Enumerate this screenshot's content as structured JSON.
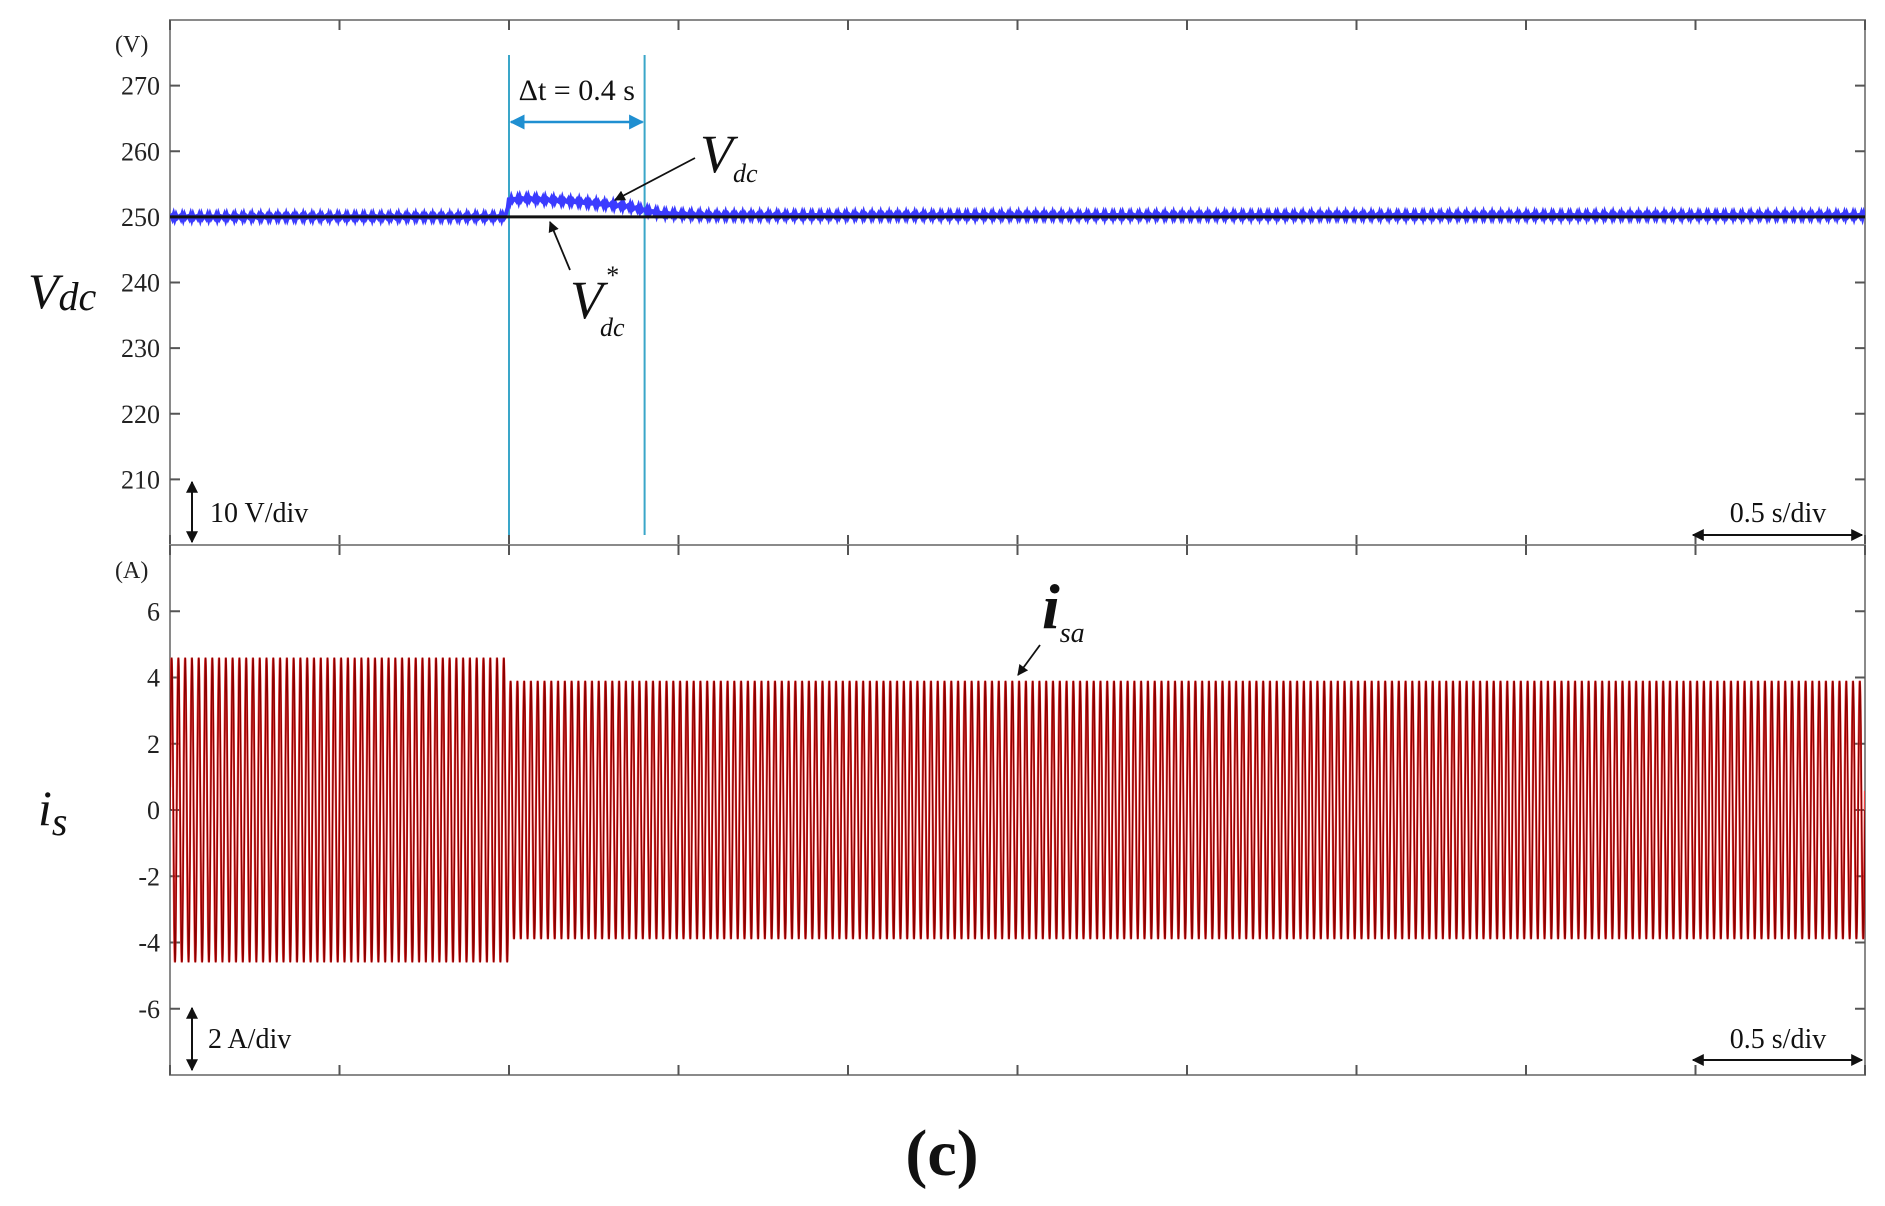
{
  "caption": "(c)",
  "colors": {
    "axes": "#8a8a8a",
    "grid_tick": "#555555",
    "vdc_measured": "#3b3bff",
    "vdc_reference": "#111111",
    "current_envelope": "#ff3b3b",
    "current_inner": "#8b0000",
    "cursor_lines": "#3aa6c9",
    "delta_arrow": "#1f8fd1"
  },
  "chart_data": [
    {
      "type": "line",
      "unit_label": "(V)",
      "ylabel_main": "V",
      "ylabel_sub": "dc",
      "x_range": [
        0,
        5
      ],
      "y_range": [
        200,
        280
      ],
      "y_ticks": [
        210,
        220,
        230,
        240,
        250,
        260,
        270
      ],
      "y_tick_labels": [
        "210",
        "220",
        "230",
        "240",
        "250",
        "260",
        "270"
      ],
      "vertical_scale_label": "10 V/div",
      "time_scale_label": "0.5 s/div",
      "cursors": [
        1.0,
        1.4
      ],
      "delta_label": "Δt = 0.4 s",
      "annotations": [
        {
          "main": "V",
          "sub": "dc",
          "sup": ""
        },
        {
          "main": "V",
          "sub": "dc",
          "sup": "*"
        }
      ],
      "series": [
        {
          "role": "measured",
          "x": [
            0,
            0.99,
            1.0,
            1.05,
            1.2,
            1.35,
            1.45,
            1.6,
            5.0
          ],
          "y": [
            250,
            250,
            252.6,
            252.8,
            252.3,
            251.6,
            250.5,
            250.2,
            250.2
          ]
        },
        {
          "role": "reference",
          "x": [
            0,
            5.0
          ],
          "y": [
            250,
            250
          ]
        }
      ]
    },
    {
      "type": "line",
      "unit_label": "(A)",
      "ylabel_main": "i",
      "ylabel_sub": "s",
      "x_range": [
        0,
        5
      ],
      "y_range": [
        -8,
        8
      ],
      "y_ticks": [
        -6,
        -4,
        -2,
        0,
        2,
        4,
        6
      ],
      "y_tick_labels": [
        "-6",
        "-4",
        "-2",
        "0",
        "2",
        "4",
        "6"
      ],
      "vertical_scale_label": "2 A/div",
      "time_scale_label": "0.5 s/div",
      "annotations": [
        {
          "main": "i",
          "sub": "sa",
          "sup": ""
        }
      ],
      "series": [
        {
          "role": "current",
          "frequency_hz": 50,
          "amplitude_segments": [
            {
              "x_start": 0,
              "x_end": 1.0,
              "amplitude": 4.6
            },
            {
              "x_start": 1.0,
              "x_end": 5.0,
              "amplitude": 3.9
            }
          ]
        }
      ]
    }
  ]
}
